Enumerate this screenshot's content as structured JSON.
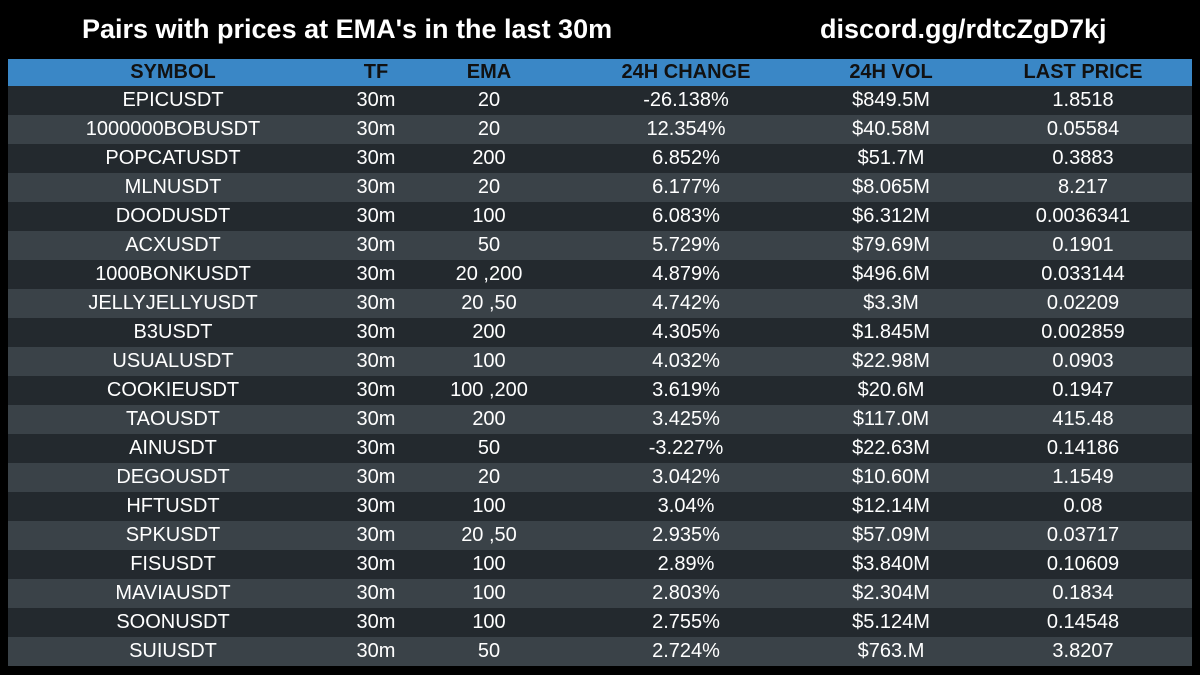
{
  "header": {
    "title": "Pairs with prices at EMA's in the last 30m",
    "discord_link": "discord.gg/rdtcZgD7kj"
  },
  "colors": {
    "background": "#000000",
    "header_row": "#3a87c6",
    "row_dark": "#23292e",
    "row_light": "#3a4248",
    "text": "#ffffff"
  },
  "table": {
    "columns": [
      "SYMBOL",
      "TF",
      "EMA",
      "24H CHANGE",
      "24H VOL",
      "LAST PRICE"
    ],
    "rows": [
      {
        "symbol": "EPICUSDT",
        "tf": "30m",
        "ema": "20",
        "change": "-26.138%",
        "vol": "$849.5M",
        "price": "1.8518"
      },
      {
        "symbol": "1000000BOBUSDT",
        "tf": "30m",
        "ema": "20",
        "change": "12.354%",
        "vol": "$40.58M",
        "price": "0.05584"
      },
      {
        "symbol": "POPCATUSDT",
        "tf": "30m",
        "ema": "200",
        "change": "6.852%",
        "vol": "$51.7M",
        "price": "0.3883"
      },
      {
        "symbol": "MLNUSDT",
        "tf": "30m",
        "ema": "20",
        "change": "6.177%",
        "vol": "$8.065M",
        "price": "8.217"
      },
      {
        "symbol": "DOODUSDT",
        "tf": "30m",
        "ema": "100",
        "change": "6.083%",
        "vol": "$6.312M",
        "price": "0.0036341"
      },
      {
        "symbol": "ACXUSDT",
        "tf": "30m",
        "ema": "50",
        "change": "5.729%",
        "vol": "$79.69M",
        "price": "0.1901"
      },
      {
        "symbol": "1000BONKUSDT",
        "tf": "30m",
        "ema": "20 ,200",
        "change": "4.879%",
        "vol": "$496.6M",
        "price": "0.033144"
      },
      {
        "symbol": "JELLYJELLYUSDT",
        "tf": "30m",
        "ema": "20 ,50",
        "change": "4.742%",
        "vol": "$3.3M",
        "price": "0.02209"
      },
      {
        "symbol": "B3USDT",
        "tf": "30m",
        "ema": "200",
        "change": "4.305%",
        "vol": "$1.845M",
        "price": "0.002859"
      },
      {
        "symbol": "USUALUSDT",
        "tf": "30m",
        "ema": "100",
        "change": "4.032%",
        "vol": "$22.98M",
        "price": "0.0903"
      },
      {
        "symbol": "COOKIEUSDT",
        "tf": "30m",
        "ema": "100 ,200",
        "change": "3.619%",
        "vol": "$20.6M",
        "price": "0.1947"
      },
      {
        "symbol": "TAOUSDT",
        "tf": "30m",
        "ema": "200",
        "change": "3.425%",
        "vol": "$117.0M",
        "price": "415.48"
      },
      {
        "symbol": "AINUSDT",
        "tf": "30m",
        "ema": "50",
        "change": "-3.227%",
        "vol": "$22.63M",
        "price": "0.14186"
      },
      {
        "symbol": "DEGOUSDT",
        "tf": "30m",
        "ema": "20",
        "change": "3.042%",
        "vol": "$10.60M",
        "price": "1.1549"
      },
      {
        "symbol": "HFTUSDT",
        "tf": "30m",
        "ema": "100",
        "change": "3.04%",
        "vol": "$12.14M",
        "price": "0.08"
      },
      {
        "symbol": "SPKUSDT",
        "tf": "30m",
        "ema": "20 ,50",
        "change": "2.935%",
        "vol": "$57.09M",
        "price": "0.03717"
      },
      {
        "symbol": "FISUSDT",
        "tf": "30m",
        "ema": "100",
        "change": "2.89%",
        "vol": "$3.840M",
        "price": "0.10609"
      },
      {
        "symbol": "MAVIAUSDT",
        "tf": "30m",
        "ema": "100",
        "change": "2.803%",
        "vol": "$2.304M",
        "price": "0.1834"
      },
      {
        "symbol": "SOONUSDT",
        "tf": "30m",
        "ema": "100",
        "change": "2.755%",
        "vol": "$5.124M",
        "price": "0.14548"
      },
      {
        "symbol": "SUIUSDT",
        "tf": "30m",
        "ema": "50",
        "change": "2.724%",
        "vol": "$763.M",
        "price": "3.8207"
      }
    ]
  }
}
